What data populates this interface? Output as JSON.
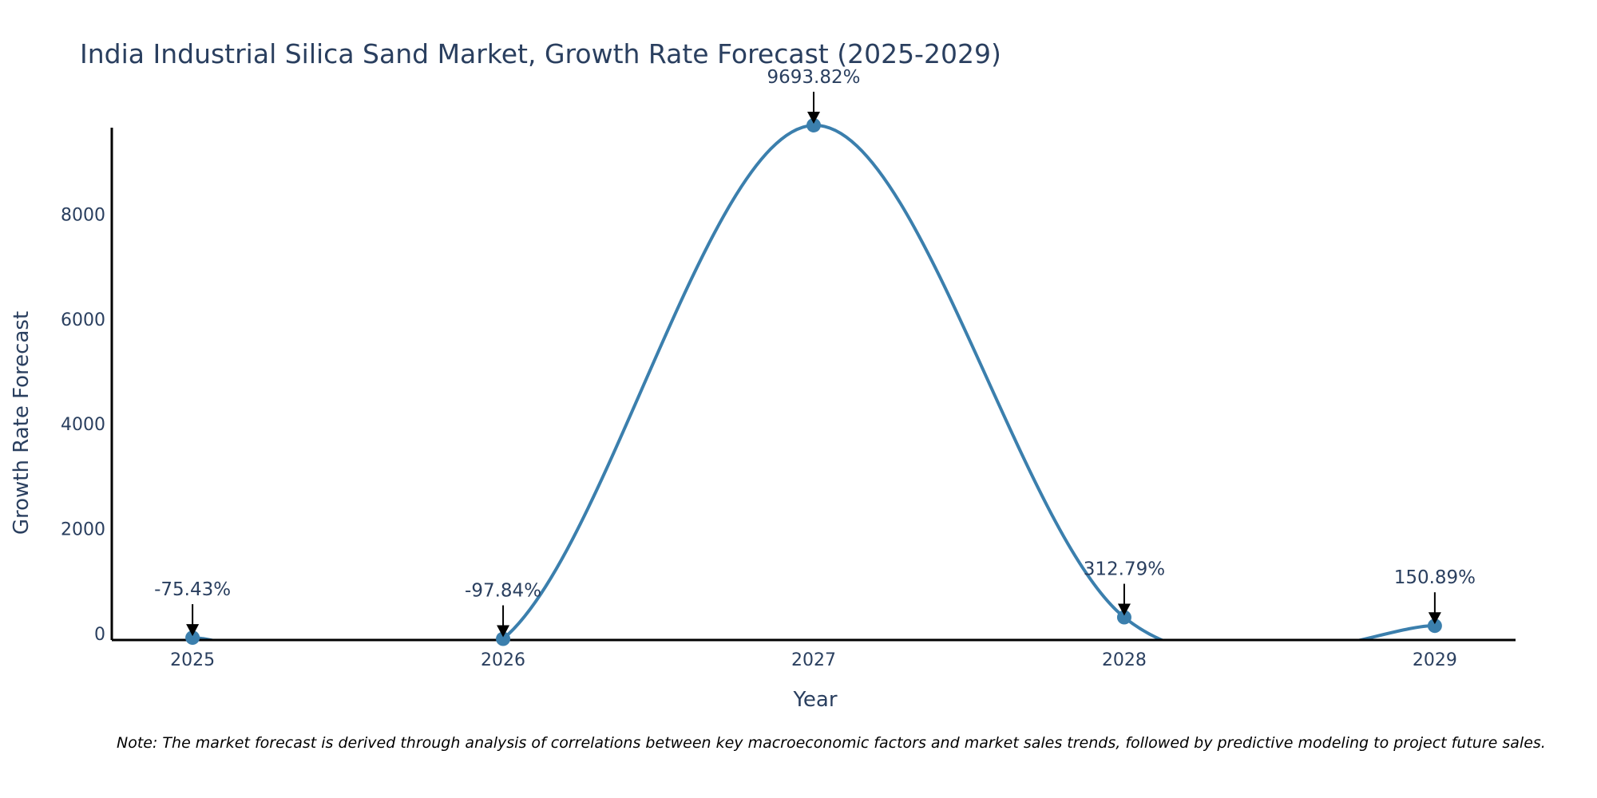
{
  "chart_data": {
    "type": "line",
    "title": "India Industrial Silica Sand Market, Growth Rate Forecast (2025-2029)",
    "xlabel": "Year",
    "ylabel": "Growth Rate Forecast",
    "categories": [
      "2025",
      "2026",
      "2027",
      "2028",
      "2029"
    ],
    "x": [
      2025,
      2026,
      2027,
      2028,
      2029
    ],
    "values": [
      -75.43,
      -97.84,
      9693.82,
      312.79,
      150.89
    ],
    "data_labels": [
      "-75.43%",
      "-97.84%",
      "9693.82%",
      "312.79%",
      "150.89%"
    ],
    "yticks": [
      0,
      2000,
      4000,
      6000,
      8000
    ],
    "ytick_labels": [
      "0",
      "2000",
      "4000",
      "6000",
      "8000"
    ],
    "ylim": [
      -120,
      9800
    ],
    "xlim": [
      2024.74,
      2029.26
    ],
    "grid": false,
    "line_color": "#3b7fad",
    "marker_color": "#3b7fad",
    "smoothing": "spline"
  },
  "note": "Note: The market forecast is derived through analysis of correlations between key macroeconomic factors and market sales trends, followed by predictive modeling to project future sales."
}
